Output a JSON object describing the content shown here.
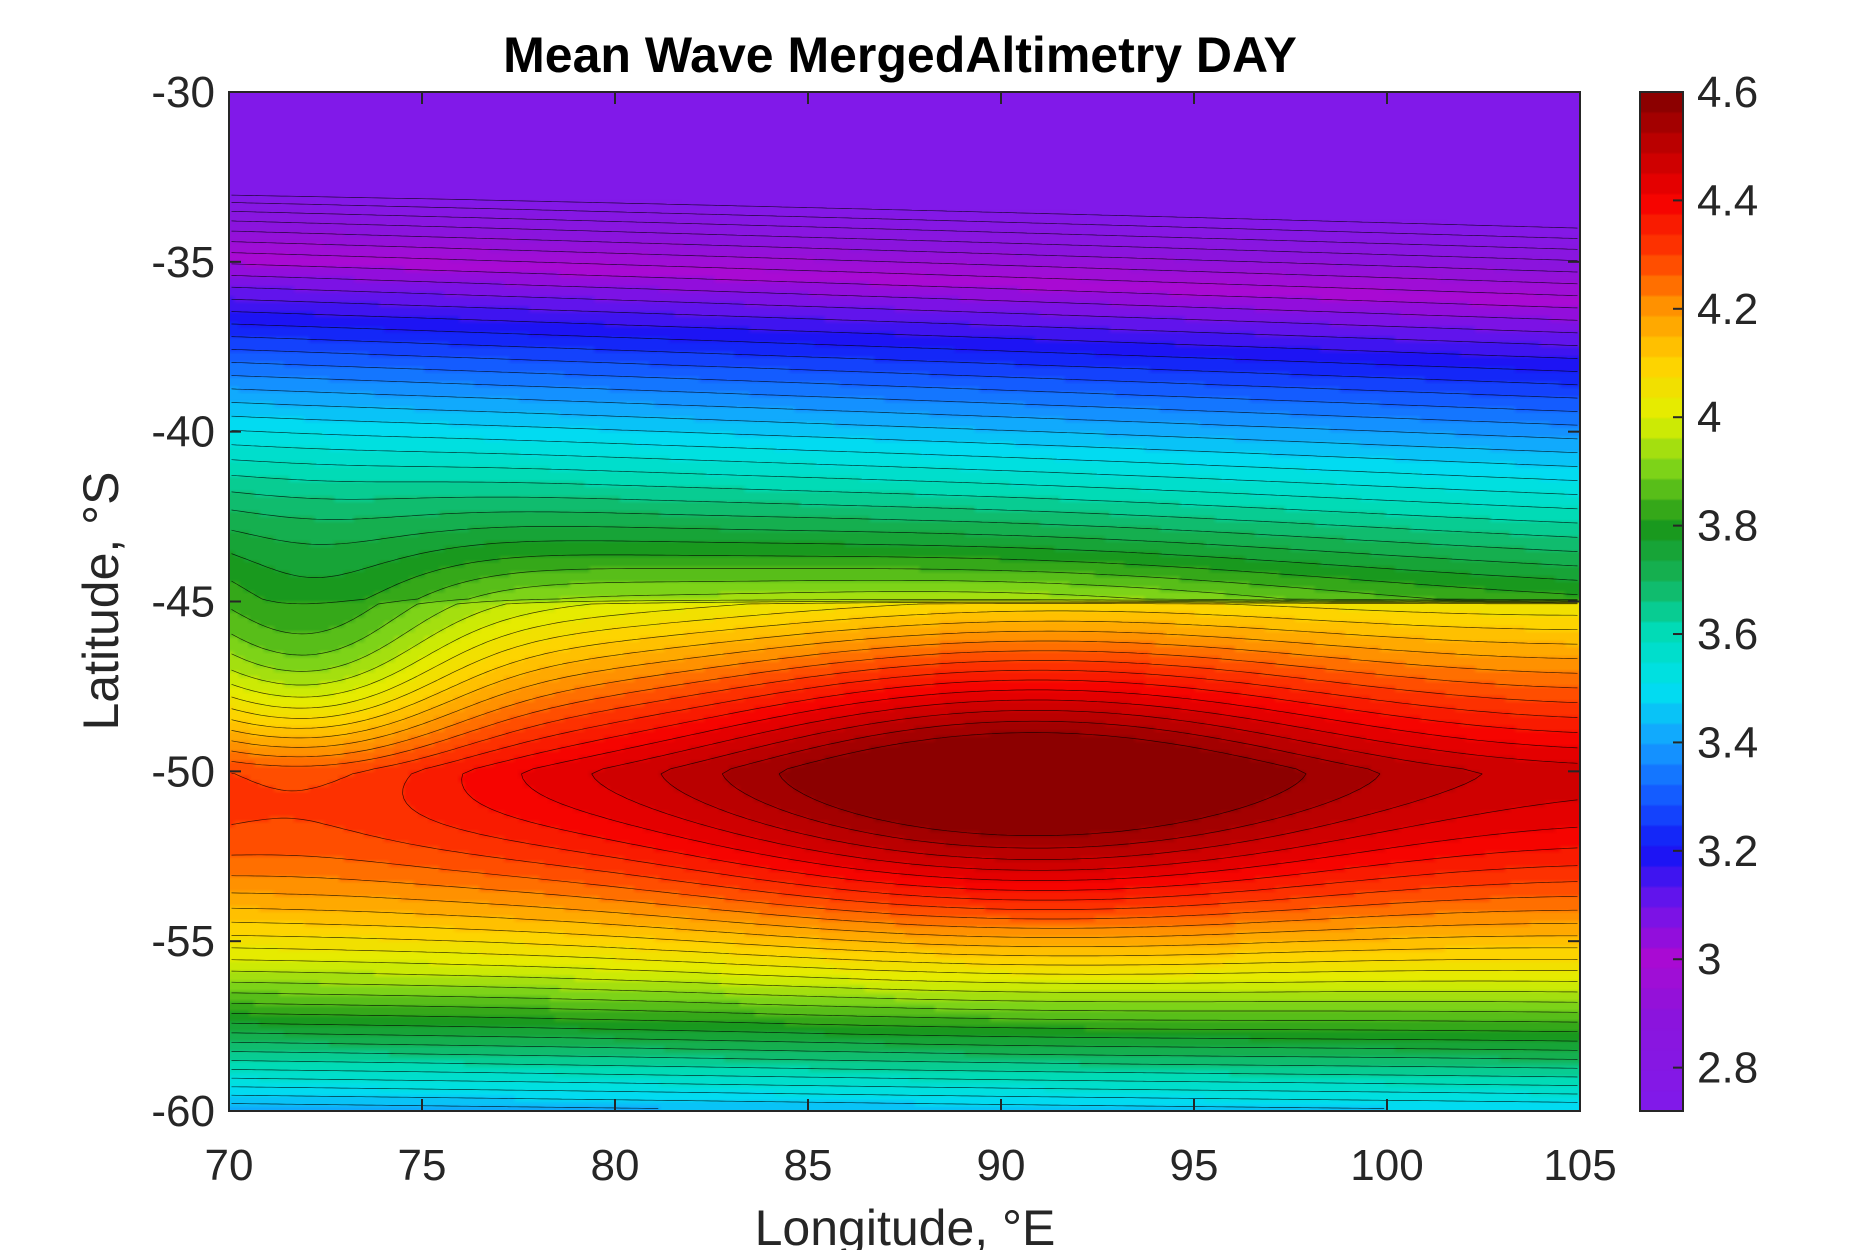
{
  "chart_data": {
    "type": "heatmap",
    "subtype": "filled-contour",
    "title": "Mean Wave MergedAltimetry DAY",
    "xlabel": "Longitude, °E",
    "ylabel": "Latitude, °S",
    "xlim": [
      70,
      105
    ],
    "ylim": [
      -60,
      -30
    ],
    "xticks": [
      "70",
      "75",
      "80",
      "85",
      "90",
      "95",
      "100",
      "105"
    ],
    "yticks": [
      "-30",
      "-35",
      "-40",
      "-45",
      "-50",
      "-55",
      "-60"
    ],
    "colorbar": {
      "clim": [
        2.72,
        4.6
      ],
      "ticks": [
        "2.8",
        "3",
        "3.2",
        "3.4",
        "3.6",
        "3.8",
        "4",
        "4.2",
        "4.4",
        "4.6"
      ],
      "colormap": "jet-like (violet to dark red)"
    },
    "field_description": {
      "peak": {
        "lon": 90.5,
        "lat": -50,
        "value": 4.6
      },
      "min_band": {
        "lat": -31.5,
        "value": 2.75
      },
      "trough_south": {
        "lat": -60,
        "value": 3.4
      }
    },
    "grid": false,
    "contour_lines": true
  }
}
